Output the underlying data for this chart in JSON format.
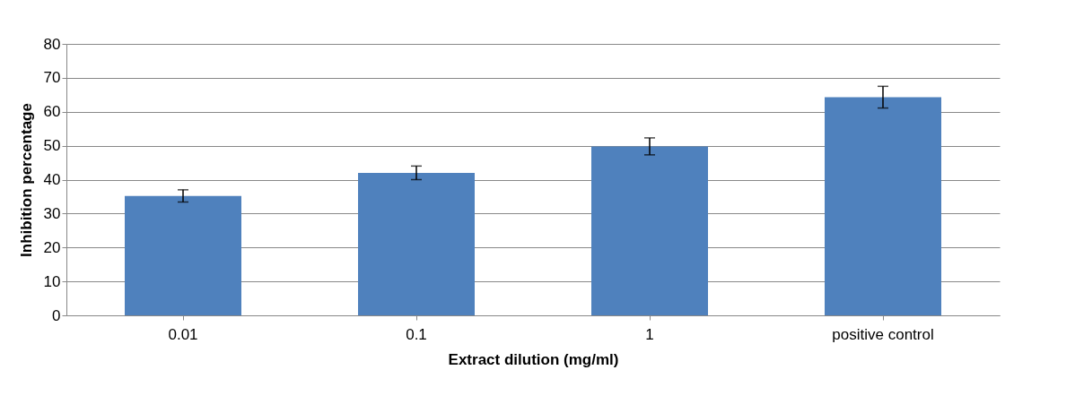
{
  "chart_data": {
    "type": "bar",
    "xlabel": "Extract dilution (mg/ml)",
    "ylabel": "Inhibition percentage",
    "categories": [
      "0.01",
      "0.1",
      "1",
      "positive control"
    ],
    "values": [
      35.2,
      42.0,
      49.8,
      64.3
    ],
    "errors": [
      1.8,
      2.0,
      2.5,
      3.2
    ],
    "color": "#4f81bd",
    "ylim": [
      0,
      80
    ],
    "yticks": [
      0,
      10,
      20,
      30,
      40,
      50,
      60,
      70,
      80
    ],
    "grid": "y"
  }
}
